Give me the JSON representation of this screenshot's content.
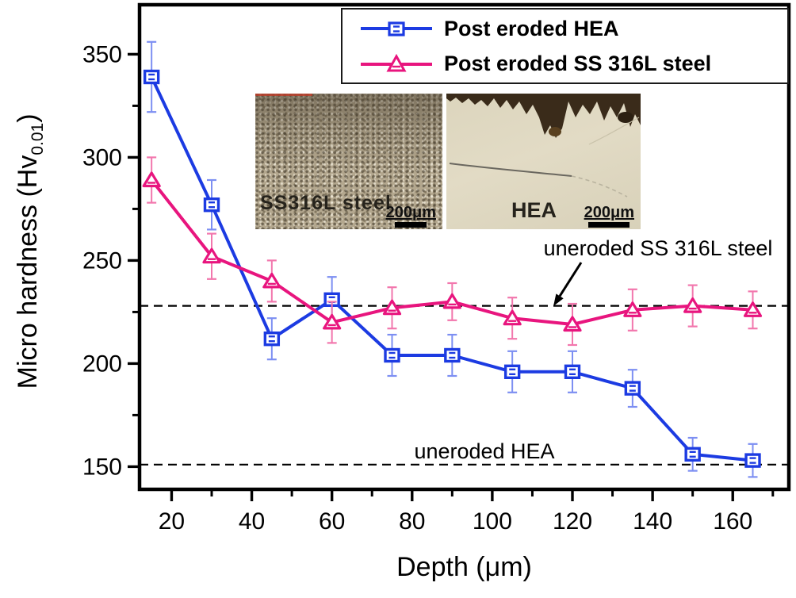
{
  "chart_data": {
    "type": "line",
    "title": "",
    "xlabel": "Depth (μm)",
    "ylabel": "Micro hardness (Hv0.01)",
    "ylabel_parts": {
      "main": "Micro hardness (Hv",
      "sub": "0.01",
      "close": ")"
    },
    "xlabel_parts": {
      "main": "Depth (",
      "mu": "μ",
      "close": "m)"
    },
    "x": [
      15,
      30,
      45,
      60,
      75,
      90,
      105,
      120,
      135,
      150,
      165
    ],
    "series": [
      {
        "name": "Post eroded HEA",
        "marker": "square",
        "color": "#1c3be2",
        "error_color": "#7d8ff2",
        "values": [
          339,
          277,
          212,
          231,
          204,
          204,
          196,
          196,
          188,
          156,
          153
        ],
        "errors": [
          17,
          12,
          10,
          11,
          10,
          10,
          10,
          10,
          9,
          8,
          8
        ]
      },
      {
        "name": "Post eroded SS 316L steel",
        "marker": "triangle",
        "color": "#e8157e",
        "error_color": "#f277ad",
        "values": [
          289,
          252,
          240,
          220,
          227,
          230,
          222,
          219,
          226,
          228,
          226
        ],
        "errors": [
          11,
          11,
          10,
          10,
          10,
          9,
          10,
          10,
          10,
          10,
          9
        ]
      }
    ],
    "reference_lines": [
      {
        "label": "uneroded SS 316L steel",
        "value": 228
      },
      {
        "label": "uneroded HEA",
        "value": 151
      }
    ],
    "x_ticks": [
      20,
      40,
      60,
      80,
      100,
      120,
      140,
      160
    ],
    "y_ticks": [
      150,
      200,
      250,
      300,
      350
    ],
    "x_minor_ticks": [
      30,
      50,
      70,
      90,
      110,
      130,
      150,
      170
    ],
    "y_minor_ticks": [
      175,
      225,
      275,
      325
    ],
    "xlim": [
      12,
      174
    ],
    "ylim": [
      139,
      374
    ],
    "grid": false,
    "legend_position": "top-right",
    "axis_color": "#000000"
  },
  "insets": [
    {
      "label": "SS316L steel",
      "scale_bar": "200μm"
    },
    {
      "label": "HEA",
      "scale_bar": "200μm"
    }
  ]
}
